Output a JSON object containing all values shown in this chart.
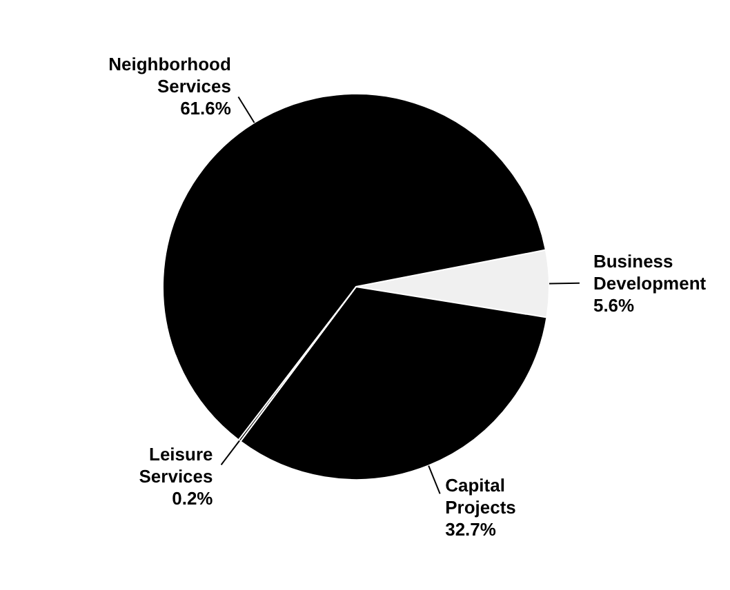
{
  "chart_data": {
    "type": "pie",
    "categories": [
      "Business Development",
      "Capital Projects",
      "Leisure Services",
      "Neighborhood Services"
    ],
    "values": [
      5.6,
      32.7,
      0.2,
      61.6
    ],
    "colors": [
      "#f0f0f0",
      "#000000",
      "#000000",
      "#000000"
    ],
    "value_labels": [
      "5.6%",
      "32.7%",
      "0.2%",
      "61.6%"
    ]
  }
}
